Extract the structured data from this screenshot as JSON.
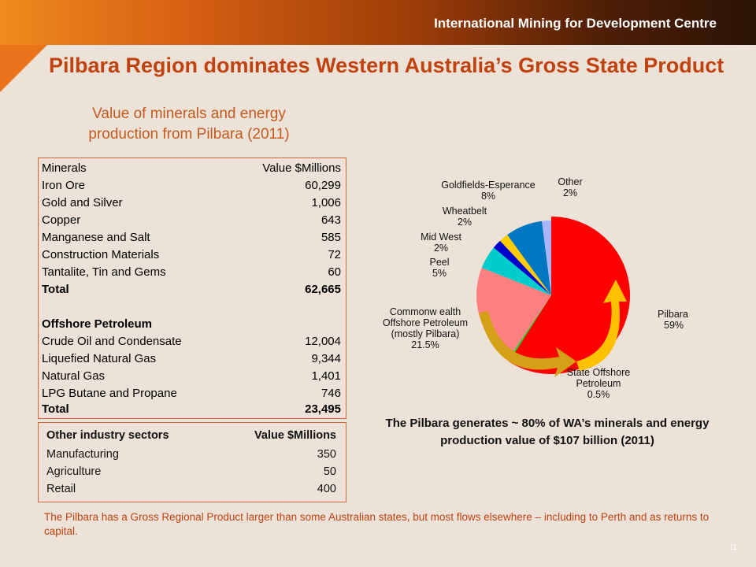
{
  "header": {
    "org_name": "International Mining for Development Centre"
  },
  "title": "Pilbara Region dominates Western Australia’s Gross State Product",
  "subtitle": "Value of minerals and energy production from Pilbara (2011)",
  "minerals_table": {
    "header_label": "Minerals",
    "header_value": "Value $Millions",
    "rows": [
      {
        "label": "Iron Ore",
        "value": "60,299"
      },
      {
        "label": "Gold and Silver",
        "value": "1,006"
      },
      {
        "label": "Copper",
        "value": "643"
      },
      {
        "label": "Manganese and Salt",
        "value": "585"
      },
      {
        "label": "Construction Materials",
        "value": "72"
      },
      {
        "label": "Tantalite, Tin and Gems",
        "value": "60"
      }
    ],
    "total_label": "Total",
    "total_value": "62,665",
    "section2_label": "Offshore Petroleum",
    "rows2": [
      {
        "label": "Crude Oil and Condensate",
        "value": "12,004"
      },
      {
        "label": "Liquefied Natural Gas",
        "value": "9,344"
      },
      {
        "label": "Natural Gas",
        "value": "1,401"
      },
      {
        "label": "LPG Butane and Propane",
        "value": "746"
      }
    ],
    "total2_label": "Total",
    "total2_value": "23,495"
  },
  "other_table": {
    "header_label": "Other industry sectors",
    "header_value": "Value $Millions",
    "rows": [
      {
        "label": "Manufacturing",
        "value": "350"
      },
      {
        "label": "Agriculture",
        "value": "50"
      },
      {
        "label": "Retail",
        "value": "400"
      }
    ]
  },
  "chart_data": {
    "type": "pie",
    "slices": [
      {
        "name": "Pilbara",
        "label": "Pilbara",
        "pct": "59%",
        "value": 59,
        "color": "#ff0000"
      },
      {
        "name": "State Offshore Petroleum",
        "label": "State Offshore Petroleum",
        "pct": "0.5%",
        "value": 0.5,
        "color": "#33cc33"
      },
      {
        "name": "Commonwealth Offshore Petroleum (mostly Pilbara)",
        "label": "Commonw ealth Offshore Petroleum (mostly Pilbara)",
        "pct": "21.5%",
        "value": 21.5,
        "color": "#ff8080"
      },
      {
        "name": "Peel",
        "label": "Peel",
        "pct": "5%",
        "value": 5,
        "color": "#00cccc"
      },
      {
        "name": "Mid West",
        "label": "Mid West",
        "pct": "2%",
        "value": 2,
        "color": "#0000cc"
      },
      {
        "name": "Wheatbelt",
        "label": "Wheatbelt",
        "pct": "2%",
        "value": 2,
        "color": "#ffcc00"
      },
      {
        "name": "Goldfields-Esperance",
        "label": "Goldfields-Esperance",
        "pct": "8%",
        "value": 8,
        "color": "#0077c0"
      },
      {
        "name": "Other",
        "label": "Other",
        "pct": "2%",
        "value": 2,
        "color": "#aab4ff"
      }
    ]
  },
  "caption": "The Pilbara generates ~ 80% of WA’s minerals and energy production value of $107 billion (2011)",
  "footnote": "The Pilbara has a Gross Regional Product larger than some Australian states, but most flows elsewhere – including to Perth and as returns to capital.",
  "page_number": "11"
}
